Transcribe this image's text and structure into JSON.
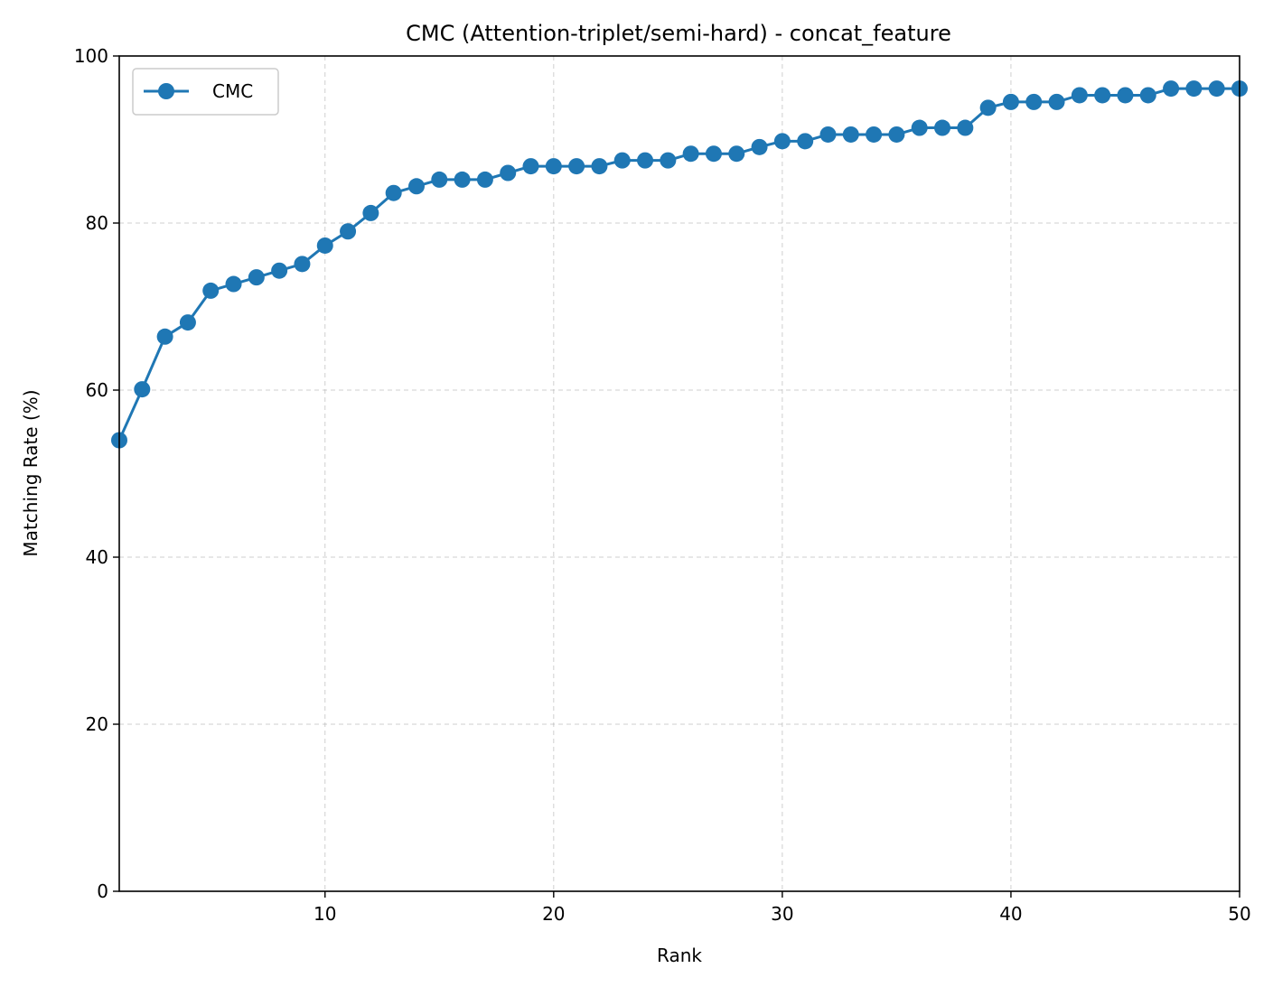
{
  "chart_data": {
    "type": "line",
    "title": "CMC (Attention-triplet/semi-hard) - concat_feature",
    "xlabel": "Rank",
    "ylabel": "Matching Rate (%)",
    "xlim": [
      1,
      50
    ],
    "ylim": [
      0,
      100
    ],
    "xticks": [
      10,
      20,
      30,
      40,
      50
    ],
    "yticks": [
      0,
      20,
      40,
      60,
      80,
      100
    ],
    "grid": true,
    "legend_position": "top-left",
    "color": "#1f77b4",
    "series": [
      {
        "name": "CMC",
        "x": [
          1,
          2,
          3,
          4,
          5,
          6,
          7,
          8,
          9,
          10,
          11,
          12,
          13,
          14,
          15,
          16,
          17,
          18,
          19,
          20,
          21,
          22,
          23,
          24,
          25,
          26,
          27,
          28,
          29,
          30,
          31,
          32,
          33,
          34,
          35,
          36,
          37,
          38,
          39,
          40,
          41,
          42,
          43,
          44,
          45,
          46,
          47,
          48,
          49,
          50
        ],
        "values": [
          54.0,
          60.1,
          66.4,
          68.1,
          71.9,
          72.7,
          73.5,
          74.3,
          75.1,
          77.3,
          79.0,
          81.2,
          83.6,
          84.4,
          85.2,
          85.2,
          85.2,
          86.0,
          86.8,
          86.8,
          86.8,
          86.8,
          87.5,
          87.5,
          87.5,
          88.3,
          88.3,
          88.3,
          89.1,
          89.8,
          89.8,
          90.6,
          90.6,
          90.6,
          90.6,
          91.4,
          91.4,
          91.4,
          93.8,
          94.5,
          94.5,
          94.5,
          95.3,
          95.3,
          95.3,
          95.3,
          96.1,
          96.1,
          96.1,
          96.1
        ]
      }
    ]
  }
}
